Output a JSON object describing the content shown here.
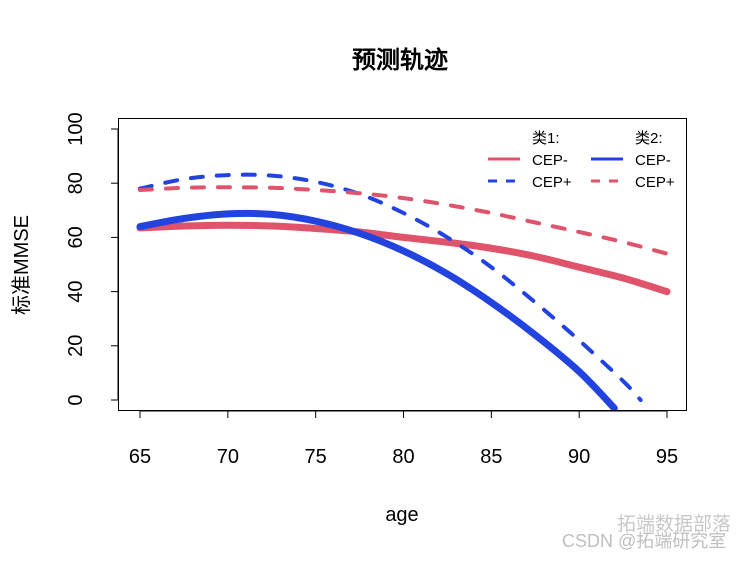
{
  "chart_data": {
    "type": "line",
    "title": "预测轨迹",
    "xlabel": "age",
    "ylabel": "标准MMSE",
    "xlim": [
      64,
      96.5
    ],
    "ylim": [
      -4,
      104
    ],
    "x_ticks": [
      65,
      70,
      75,
      80,
      85,
      90,
      95
    ],
    "y_ticks": [
      0,
      20,
      40,
      60,
      80,
      100
    ],
    "grid": false,
    "legend_position": "top-right",
    "legend": {
      "headers": [
        "类1:",
        "类2:"
      ],
      "entries": [
        {
          "label": "CEP-",
          "column": 0,
          "series": 0
        },
        {
          "label": "CEP+",
          "column": 0,
          "series": 1
        },
        {
          "label": "CEP-",
          "column": 1,
          "series": 2
        },
        {
          "label": "CEP+",
          "column": 1,
          "series": 3
        }
      ]
    },
    "series": [
      {
        "name": "类1: CEP-",
        "color": "#DF536B",
        "style": "solid",
        "x": [
          65,
          67.5,
          70,
          72.5,
          75,
          77.5,
          80,
          82.5,
          85,
          87.5,
          90,
          92.5,
          95
        ],
        "y": [
          63.5,
          64.2,
          64.5,
          64.2,
          63.3,
          62,
          60,
          58.2,
          56,
          53,
          49,
          45,
          40
        ]
      },
      {
        "name": "类1: CEP+",
        "color": "#2343DF",
        "style": "dashed",
        "x": [
          65,
          67.5,
          70,
          72.5,
          75,
          77.5,
          80,
          82.5,
          85,
          87.5,
          90,
          92.5,
          93.5
        ],
        "y": [
          78,
          81.5,
          83,
          82.8,
          80.5,
          76,
          69,
          60,
          49,
          36,
          22,
          7,
          0
        ]
      },
      {
        "name": "类2: CEP-",
        "color": "#2343DF",
        "style": "solid",
        "x": [
          65,
          67.5,
          70,
          72.5,
          75,
          77.5,
          80,
          82.5,
          85,
          87.5,
          90,
          92
        ],
        "y": [
          64,
          67,
          68.7,
          68.5,
          66,
          61.5,
          55,
          46.5,
          36,
          24,
          10.5,
          -3
        ]
      },
      {
        "name": "类2: CEP+",
        "color": "#DF536B",
        "style": "dashed",
        "x": [
          65,
          67.5,
          70,
          72.5,
          75,
          77.5,
          80,
          82.5,
          85,
          87.5,
          90,
          92.5,
          95
        ],
        "y": [
          77.5,
          78.3,
          78.5,
          78.3,
          77.5,
          76.3,
          74.5,
          72,
          69,
          65.5,
          62,
          58.3,
          54
        ]
      }
    ]
  },
  "watermark": {
    "line1": "拓端数据部落",
    "line2": "CSDN @拓端研究室"
  }
}
